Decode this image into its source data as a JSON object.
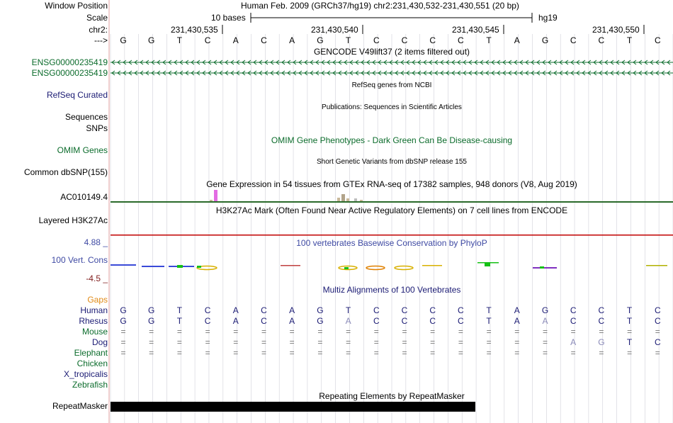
{
  "labels": {
    "window_position": "Window Position",
    "scale": "Scale",
    "chr": "chr2:",
    "arrow": "--->",
    "gene1": "ENSG00000235419",
    "gene2": "ENSG00000235419",
    "refseq": "RefSeq Curated",
    "sequences": "Sequences",
    "snps": "SNPs",
    "omim": "OMIM Genes",
    "common_dbsnp": "Common dbSNP(155)",
    "ac_gene": "AC010149.4",
    "layered": "Layered H3K27Ac",
    "phylop_max": "4.88 _",
    "vert_cons": "100 Vert. Cons",
    "phylop_min": "-4.5 _",
    "gaps": "Gaps",
    "species": [
      "Human",
      "Rhesus",
      "Mouse",
      "Dog",
      "Elephant",
      "Chicken",
      "X_tropicalis",
      "Zebrafish"
    ],
    "repeatmasker": "RepeatMasker"
  },
  "header": {
    "assembly": "Human Feb. 2009 (GRCh37/hg19)   chr2:231,430,532-231,430,551 (20 bp)",
    "scale_text": "10 bases",
    "scale_db": "hg19",
    "positions": [
      "231,430,535",
      "231,430,540",
      "231,430,545",
      "231,430,550"
    ]
  },
  "sequence": [
    "G",
    "G",
    "T",
    "C",
    "A",
    "C",
    "A",
    "G",
    "T",
    "C",
    "C",
    "C",
    "C",
    "T",
    "A",
    "G",
    "C",
    "C",
    "T",
    "C"
  ],
  "tracks": {
    "gencode": "GENCODE V49lift37 (2 items filtered out)",
    "refseq": "RefSeq genes from NCBI",
    "publications": "Publications: Sequences in Scientific Articles",
    "omim": "OMIM Gene Phenotypes - Dark Green Can Be Disease-causing",
    "dbsnp": "Short Genetic Variants from dbSNP release 155",
    "gtex": "Gene Expression in 54 tissues from GTEx RNA-seq of 17382 samples, 948 donors (V8, Aug 2019)",
    "h3k27ac": "H3K27Ac Mark (Often Found Near Active Regulatory Elements) on 7 cell lines from ENCODE",
    "phylop": "100 vertebrates Basewise Conservation by PhyloP",
    "multiz": "Multiz Alignments of 100 Vertebrates",
    "repeat": "Repeating Elements by RepeatMasker"
  },
  "alignment": {
    "human": [
      "G",
      "G",
      "T",
      "C",
      "A",
      "C",
      "A",
      "G",
      "T",
      "C",
      "C",
      "C",
      "C",
      "T",
      "A",
      "G",
      "C",
      "C",
      "T",
      "C"
    ],
    "rhesus": [
      "G",
      "G",
      "T",
      "C",
      "A",
      "C",
      "A",
      "G",
      "A",
      "C",
      "C",
      "C",
      "C",
      "T",
      "A",
      "A",
      "C",
      "C",
      "T",
      "C"
    ],
    "mouse": [
      "=",
      "=",
      "=",
      "=",
      "=",
      "=",
      "=",
      "=",
      "=",
      "=",
      "=",
      "=",
      "=",
      "=",
      "=",
      "=",
      "=",
      "=",
      "=",
      "="
    ],
    "dog": [
      "=",
      "=",
      "=",
      "=",
      "=",
      "=",
      "=",
      "=",
      "=",
      "=",
      "=",
      "=",
      "=",
      "=",
      "=",
      "=",
      "A",
      "G",
      "T",
      "C"
    ],
    "elephant": [
      "=",
      "=",
      "=",
      "=",
      "=",
      "=",
      "=",
      "=",
      "=",
      "=",
      "=",
      "=",
      "=",
      "=",
      "=",
      "=",
      "=",
      "=",
      "=",
      "="
    ]
  },
  "colors": {
    "green": "#0c6c2c",
    "navy": "#1b1b74",
    "purple": "#3f4aa3",
    "orange": "#e08a16",
    "maroon": "#7f1b1b",
    "grid": "#d0d0d8",
    "red_line": "#c00000"
  }
}
